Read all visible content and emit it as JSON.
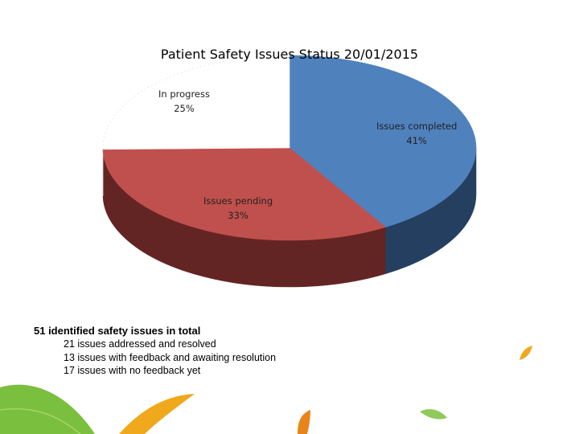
{
  "chart_data": {
    "type": "pie",
    "title": "Patient Safety Issues Status 20/01/2015",
    "slices": [
      {
        "label": "Issues completed",
        "value": 41,
        "display": "41%",
        "color": "#4f81bd",
        "side_color": "#243f60"
      },
      {
        "label": "Issues pending",
        "value": 33,
        "display": "33%",
        "color": "#c0504d",
        "side_color": "#632523"
      },
      {
        "label": "In progress",
        "value": 25,
        "display": "25%",
        "color": "#ffffff",
        "side_color": "#ffffff"
      }
    ]
  },
  "summary": {
    "title": "51 identified safety issues in total",
    "lines": [
      "21 issues addressed and resolved",
      "13 issues with feedback and awaiting resolution",
      "17 issues with no feedback yet"
    ]
  },
  "decor": {
    "leaf_colors": [
      "#7bbf3e",
      "#f0a81c",
      "#e8851a"
    ]
  }
}
